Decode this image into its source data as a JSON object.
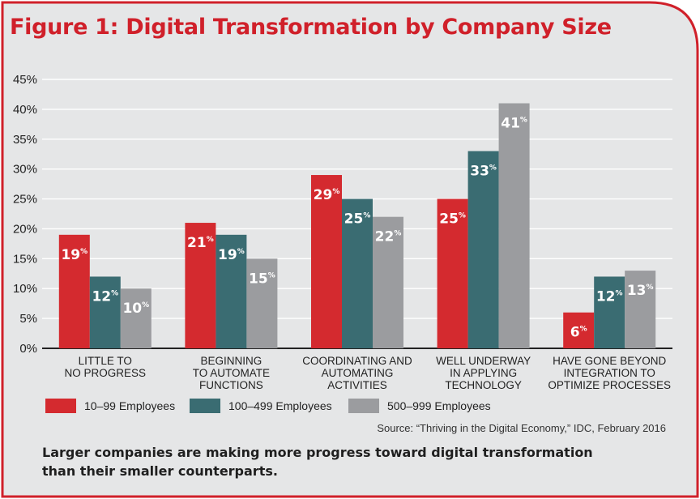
{
  "figure": {
    "title": "Figure 1: Digital Transformation by Company Size",
    "source": "Source: “Thriving in the Digital Economy,” IDC, February 2016",
    "caption_lines": [
      "Larger companies are making more progress toward digital transformation",
      "than their smaller counterparts."
    ],
    "colors": {
      "background": "#e5e6e7",
      "frame": "#d0202a",
      "title": "#d0202a"
    }
  },
  "chart_data": {
    "type": "bar",
    "title": "Figure 1: Digital Transformation by Company Size",
    "xlabel": "",
    "ylabel": "",
    "ylim": [
      0,
      45
    ],
    "yticks": [
      0,
      5,
      10,
      15,
      20,
      25,
      30,
      35,
      40,
      45
    ],
    "ytick_labels": [
      "0%",
      "5%",
      "10%",
      "15%",
      "20%",
      "25%",
      "30%",
      "35%",
      "40%",
      "45%"
    ],
    "value_unit": "%",
    "grid": true,
    "legend_position": "bottom",
    "categories": [
      [
        "LITTLE TO",
        "NO PROGRESS"
      ],
      [
        "BEGINNING",
        "TO AUTOMATE",
        "FUNCTIONS"
      ],
      [
        "COORDINATING AND",
        "AUTOMATING",
        "ACTIVITIES"
      ],
      [
        "WELL UNDERWAY",
        "IN APPLYING",
        "TECHNOLOGY"
      ],
      [
        "HAVE GONE BEYOND",
        "INTEGRATION TO",
        "OPTIMIZE PROCESSES"
      ]
    ],
    "series": [
      {
        "name": "10–99 Employees",
        "color": "#d42a2f",
        "values": [
          19,
          21,
          29,
          25,
          6
        ]
      },
      {
        "name": "100–499 Employees",
        "color": "#3a6c72",
        "values": [
          12,
          19,
          25,
          33,
          12
        ]
      },
      {
        "name": "500–999 Employees",
        "color": "#9b9c9f",
        "values": [
          10,
          15,
          22,
          41,
          13
        ]
      }
    ]
  }
}
